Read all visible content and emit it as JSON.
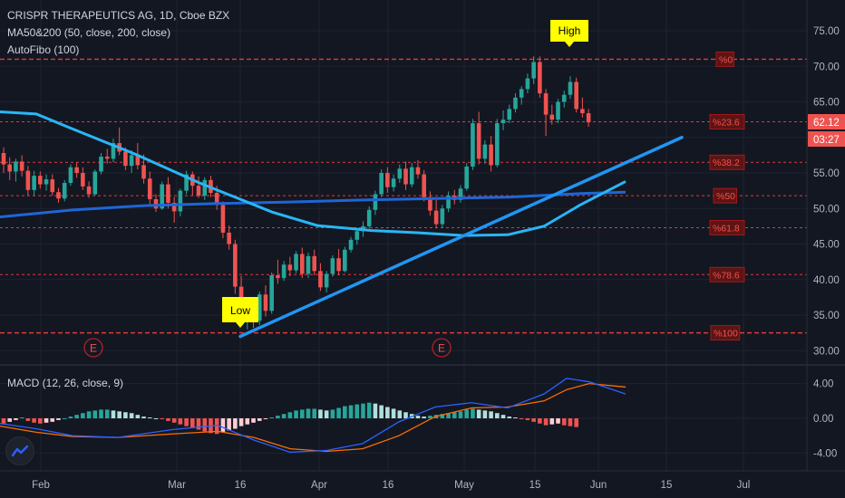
{
  "header": {
    "symbol_line": "CRISPR THERAPEUTICS AG, 1D, Cboe BZX",
    "indicator_1": "MA50&200 (50, close, 200, close)",
    "indicator_2": "AutoFibo (100)"
  },
  "macd": {
    "label": "MACD (12, 26, close, 9)",
    "y_ticks": [
      "4.00",
      "0.00",
      "-4.00"
    ]
  },
  "price_axis": {
    "ticks": [
      "75.00",
      "70.00",
      "65.00",
      "60.00",
      "55.00",
      "50.00",
      "45.00",
      "40.00",
      "35.00",
      "30.00"
    ],
    "last_price": "62.12",
    "countdown": "03:27",
    "last_price_color": "#ef5350"
  },
  "time_axis": {
    "ticks": [
      "Feb",
      "Mar",
      "16",
      "Apr",
      "16",
      "May",
      "15",
      "Jun",
      "15",
      "Jul"
    ]
  },
  "annotations": {
    "high_label": "High",
    "low_label": "Low",
    "earnings_marker": "E",
    "label_color": "#ffff00"
  },
  "fib_levels": [
    {
      "label": "0",
      "price": 71.0
    },
    {
      "label": "23.6",
      "price": 62.2
    },
    {
      "label": "38.2",
      "price": 56.5
    },
    {
      "label": "50",
      "price": 51.8
    },
    {
      "label": "61.8",
      "price": 47.3
    },
    {
      "label": "78.6",
      "price": 40.7
    },
    {
      "label": "100",
      "price": 32.5
    }
  ],
  "colors": {
    "background": "#131722",
    "up_candle": "#26a69a",
    "down_candle": "#ef5350",
    "ma50": "#29b6f6",
    "ma200": "#1e66d6",
    "trendline": "#2196f3",
    "fib_line": "#e53935",
    "macd_line": "#2962ff",
    "signal_line": "#ff6d00"
  },
  "chart_data": {
    "type": "candlestick",
    "title": "CRISPR THERAPEUTICS AG, 1D, Cboe BZX",
    "ylim": [
      28,
      78
    ],
    "x_ticks": [
      "Feb",
      "Mar",
      "16",
      "Apr",
      "16",
      "May",
      "15",
      "Jun",
      "15",
      "Jul"
    ],
    "y_ticks": [
      75,
      70,
      65,
      60,
      55,
      50,
      45,
      40,
      35,
      30
    ],
    "candles": [
      [
        57.8,
        58.6,
        55.0,
        56.2
      ],
      [
        56.2,
        57.2,
        54.0,
        55.2
      ],
      [
        55.2,
        57.0,
        53.8,
        56.6
      ],
      [
        56.6,
        57.5,
        54.5,
        55.3
      ],
      [
        55.3,
        56.0,
        51.8,
        52.6
      ],
      [
        52.6,
        55.3,
        51.8,
        54.6
      ],
      [
        54.6,
        55.2,
        52.8,
        53.4
      ],
      [
        53.4,
        54.8,
        52.5,
        54.1
      ],
      [
        54.1,
        54.8,
        51.8,
        52.3
      ],
      [
        52.3,
        52.9,
        50.8,
        51.4
      ],
      [
        51.4,
        54.0,
        51.0,
        53.6
      ],
      [
        53.6,
        56.2,
        53.2,
        55.8
      ],
      [
        55.8,
        56.5,
        54.3,
        55.0
      ],
      [
        55.0,
        55.8,
        52.6,
        53.1
      ],
      [
        53.1,
        53.8,
        51.5,
        52.0
      ],
      [
        52.0,
        55.5,
        51.8,
        55.2
      ],
      [
        55.2,
        57.8,
        54.8,
        57.3
      ],
      [
        57.3,
        58.4,
        56.3,
        57.0
      ],
      [
        57.0,
        59.8,
        56.5,
        59.2
      ],
      [
        59.2,
        61.4,
        57.5,
        58.0
      ],
      [
        58.0,
        58.6,
        55.4,
        56.0
      ],
      [
        56.0,
        58.2,
        55.0,
        57.5
      ],
      [
        57.5,
        59.2,
        55.5,
        56.1
      ],
      [
        56.1,
        57.6,
        53.5,
        54.2
      ],
      [
        54.2,
        55.2,
        50.5,
        51.3
      ],
      [
        51.3,
        52.0,
        49.5,
        50.0
      ],
      [
        50.0,
        53.8,
        49.8,
        53.4
      ],
      [
        53.4,
        54.4,
        50.0,
        50.8
      ],
      [
        50.8,
        51.6,
        48.0,
        49.6
      ],
      [
        49.6,
        52.8,
        48.9,
        52.5
      ],
      [
        52.5,
        55.3,
        52.0,
        54.8
      ],
      [
        54.8,
        55.2,
        51.8,
        53.2
      ],
      [
        53.2,
        54.5,
        51.5,
        51.8
      ],
      [
        51.8,
        54.4,
        51.2,
        54.0
      ],
      [
        54.0,
        54.6,
        51.6,
        52.2
      ],
      [
        52.2,
        53.2,
        49.8,
        50.5
      ],
      [
        50.5,
        51.0,
        45.8,
        46.6
      ],
      [
        46.6,
        47.6,
        44.2,
        45.0
      ],
      [
        45.0,
        45.6,
        38.0,
        39.0
      ],
      [
        39.0,
        40.5,
        34.8,
        35.6
      ],
      [
        35.6,
        37.5,
        33.0,
        36.8
      ],
      [
        36.8,
        37.2,
        33.2,
        34.2
      ],
      [
        34.2,
        38.3,
        33.6,
        37.9
      ],
      [
        37.9,
        39.2,
        34.8,
        35.6
      ],
      [
        35.6,
        41.0,
        35.2,
        40.6
      ],
      [
        40.6,
        42.8,
        39.4,
        40.2
      ],
      [
        40.2,
        42.6,
        39.8,
        42.1
      ],
      [
        42.1,
        43.2,
        40.5,
        41.3
      ],
      [
        41.3,
        44.0,
        40.9,
        43.6
      ],
      [
        43.6,
        44.5,
        40.2,
        40.8
      ],
      [
        40.8,
        43.8,
        40.2,
        43.3
      ],
      [
        43.3,
        44.2,
        40.6,
        41.2
      ],
      [
        41.2,
        42.3,
        38.4,
        38.9
      ],
      [
        38.9,
        41.2,
        38.2,
        40.8
      ],
      [
        40.8,
        43.4,
        40.4,
        43.0
      ],
      [
        43.0,
        44.3,
        40.6,
        41.2
      ],
      [
        41.2,
        44.6,
        41.0,
        44.2
      ],
      [
        44.2,
        46.0,
        43.8,
        45.6
      ],
      [
        45.6,
        47.2,
        44.9,
        46.8
      ],
      [
        46.8,
        48.2,
        46.0,
        47.5
      ],
      [
        47.5,
        50.3,
        47.2,
        49.8
      ],
      [
        49.8,
        52.5,
        49.1,
        52.0
      ],
      [
        52.0,
        55.5,
        51.6,
        55.0
      ],
      [
        55.0,
        55.8,
        52.2,
        53.0
      ],
      [
        53.0,
        54.8,
        52.4,
        54.2
      ],
      [
        54.2,
        56.2,
        53.6,
        55.6
      ],
      [
        55.6,
        56.6,
        52.6,
        53.4
      ],
      [
        53.4,
        56.4,
        53.0,
        55.8
      ],
      [
        55.8,
        56.8,
        54.2,
        54.8
      ],
      [
        54.8,
        55.4,
        51.0,
        51.6
      ],
      [
        51.6,
        52.4,
        49.0,
        49.7
      ],
      [
        49.7,
        51.2,
        47.2,
        47.8
      ],
      [
        47.8,
        50.5,
        47.3,
        50.0
      ],
      [
        50.0,
        52.4,
        49.5,
        51.8
      ],
      [
        51.8,
        52.6,
        50.6,
        51.2
      ],
      [
        51.2,
        53.3,
        50.8,
        52.8
      ],
      [
        52.8,
        56.4,
        52.5,
        55.9
      ],
      [
        55.9,
        62.6,
        55.4,
        62.0
      ],
      [
        62.0,
        63.6,
        56.2,
        57.0
      ],
      [
        57.0,
        59.6,
        56.3,
        59.0
      ],
      [
        59.0,
        60.2,
        55.2,
        56.1
      ],
      [
        56.1,
        62.6,
        55.8,
        62.0
      ],
      [
        62.0,
        63.8,
        61.0,
        62.5
      ],
      [
        62.5,
        64.6,
        62.0,
        64.0
      ],
      [
        64.0,
        66.2,
        63.5,
        65.6
      ],
      [
        65.6,
        67.2,
        64.6,
        66.8
      ],
      [
        66.8,
        69.0,
        66.2,
        68.3
      ],
      [
        68.3,
        71.4,
        67.5,
        70.6
      ],
      [
        70.6,
        71.4,
        65.6,
        66.2
      ],
      [
        66.2,
        66.8,
        60.2,
        63.2
      ],
      [
        63.2,
        64.6,
        61.8,
        62.5
      ],
      [
        62.5,
        65.4,
        62.0,
        65.0
      ],
      [
        65.0,
        66.6,
        64.2,
        66.0
      ],
      [
        66.0,
        68.6,
        65.4,
        67.8
      ],
      [
        67.8,
        68.4,
        63.5,
        64.0
      ],
      [
        64.0,
        65.6,
        62.8,
        63.4
      ],
      [
        63.4,
        64.0,
        61.5,
        62.12
      ]
    ],
    "ma50": [
      [
        0,
        63.6
      ],
      [
        40,
        63.3
      ],
      [
        80,
        61.2
      ],
      [
        150,
        57.6
      ],
      [
        220,
        53.6
      ],
      [
        300,
        49.5
      ],
      [
        350,
        47.6
      ],
      [
        410,
        46.9
      ],
      [
        460,
        46.6
      ],
      [
        510,
        46.2
      ],
      [
        560,
        46.3
      ],
      [
        600,
        47.5
      ],
      [
        640,
        50.5
      ],
      [
        690,
        53.8
      ]
    ],
    "ma200": [
      [
        0,
        48.8
      ],
      [
        80,
        49.8
      ],
      [
        160,
        50.4
      ],
      [
        240,
        50.7
      ],
      [
        320,
        50.9
      ],
      [
        400,
        51.2
      ],
      [
        480,
        51.4
      ],
      [
        560,
        51.6
      ],
      [
        640,
        52.1
      ],
      [
        690,
        52.3
      ]
    ],
    "trendline": [
      [
        265,
        32.0
      ],
      [
        752,
        60.0
      ]
    ],
    "macd": {
      "ylim": [
        -5.5,
        5.5
      ],
      "histogram": [
        -0.6,
        -0.4,
        -0.2,
        0.1,
        -0.3,
        -0.5,
        -0.6,
        -0.5,
        -0.4,
        -0.2,
        0.0,
        0.2,
        0.4,
        0.6,
        0.8,
        0.9,
        1.0,
        1.0,
        0.9,
        0.8,
        0.7,
        0.6,
        0.4,
        0.2,
        0.1,
        0.0,
        -0.1,
        -0.3,
        -0.5,
        -0.7,
        -0.9,
        -1.1,
        -1.3,
        -1.5,
        -1.7,
        -1.8,
        -1.6,
        -1.4,
        -1.2,
        -0.9,
        -0.7,
        -0.5,
        -0.3,
        -0.1,
        0.1,
        0.3,
        0.5,
        0.7,
        0.9,
        1.0,
        1.1,
        1.1,
        1.0,
        0.9,
        1.0,
        1.2,
        1.4,
        1.5,
        1.6,
        1.7,
        1.8,
        1.7,
        1.5,
        1.3,
        1.1,
        0.9,
        0.7,
        0.5,
        0.3,
        0.2,
        0.3,
        0.4,
        0.5,
        0.6,
        0.7,
        0.8,
        1.0,
        1.1,
        1.0,
        0.9,
        0.8,
        0.6,
        0.4,
        0.2,
        0.1,
        -0.1,
        -0.2,
        -0.4,
        -0.6,
        -0.8,
        -0.7,
        -0.6,
        -0.8,
        -0.9,
        -1.0
      ],
      "macd_line": [
        [
          0,
          -0.6
        ],
        [
          40,
          -1.2
        ],
        [
          80,
          -2.0
        ],
        [
          130,
          -2.2
        ],
        [
          190,
          -1.3
        ],
        [
          240,
          -0.8
        ],
        [
          280,
          -2.5
        ],
        [
          320,
          -3.9
        ],
        [
          360,
          -3.7
        ],
        [
          400,
          -2.9
        ],
        [
          440,
          -0.4
        ],
        [
          480,
          1.3
        ],
        [
          520,
          1.8
        ],
        [
          560,
          1.2
        ],
        [
          600,
          2.8
        ],
        [
          625,
          4.6
        ],
        [
          650,
          4.2
        ],
        [
          690,
          2.8
        ]
      ],
      "signal_line": [
        [
          0,
          -0.9
        ],
        [
          40,
          -1.6
        ],
        [
          80,
          -2.1
        ],
        [
          130,
          -2.2
        ],
        [
          190,
          -1.8
        ],
        [
          240,
          -1.5
        ],
        [
          280,
          -2.2
        ],
        [
          320,
          -3.5
        ],
        [
          360,
          -3.8
        ],
        [
          400,
          -3.5
        ],
        [
          440,
          -2.0
        ],
        [
          480,
          0.2
        ],
        [
          520,
          1.2
        ],
        [
          560,
          1.3
        ],
        [
          600,
          2.0
        ],
        [
          625,
          3.3
        ],
        [
          650,
          4.0
        ],
        [
          690,
          3.6
        ]
      ]
    }
  }
}
